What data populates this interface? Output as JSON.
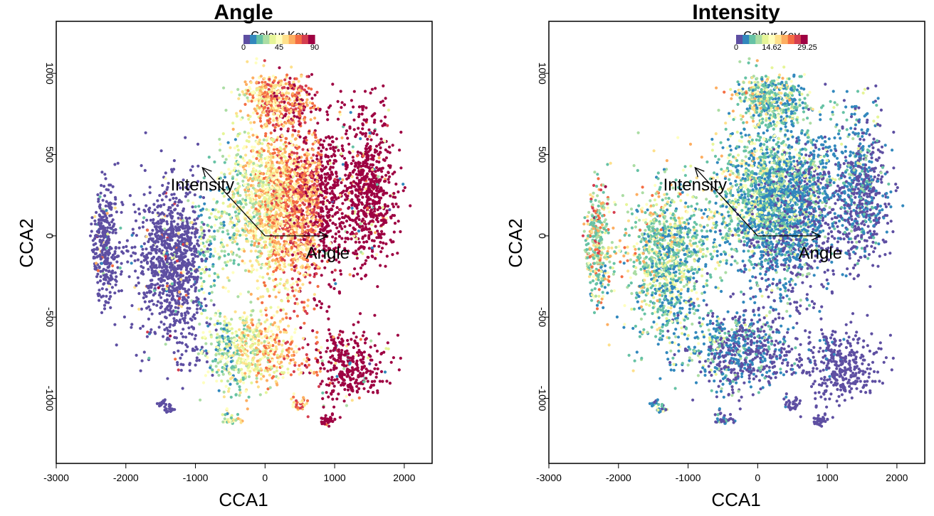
{
  "chart_data": [
    {
      "type": "scatter",
      "title": "Angle",
      "xlabel": "CCA1",
      "ylabel": "CCA2",
      "xlim": [
        -3000,
        2400
      ],
      "ylim": [
        -1400,
        1320
      ],
      "x_ticks": [
        "-3000",
        "-2000",
        "-1000",
        "0",
        "1000",
        "2000"
      ],
      "y_ticks": [
        "-1000",
        "-500",
        "0",
        "500",
        "1000"
      ],
      "colour_key": {
        "title": "Colour Key",
        "tick_labels": [
          "0",
          "45",
          "90"
        ],
        "colors": [
          "#5E4FA2",
          "#3288BD",
          "#66C2A5",
          "#ABDDA4",
          "#E6F598",
          "#FFFFBF",
          "#FEE08B",
          "#FDAE61",
          "#F46D43",
          "#D53E4F",
          "#9E0142"
        ]
      },
      "vectors": [
        {
          "label": "Intensity",
          "x": -900,
          "y": 420
        },
        {
          "label": "Angle",
          "x": 900,
          "y": 0
        }
      ],
      "color_variable": "angle",
      "grid": false
    },
    {
      "type": "scatter",
      "title": "Intensity",
      "xlabel": "CCA1",
      "ylabel": "CCA2",
      "xlim": [
        -3000,
        2400
      ],
      "ylim": [
        -1400,
        1320
      ],
      "x_ticks": [
        "-3000",
        "-2000",
        "-1000",
        "0",
        "1000",
        "2000"
      ],
      "y_ticks": [
        "-1000",
        "-500",
        "0",
        "500",
        "1000"
      ],
      "colour_key": {
        "title": "Colour Key",
        "tick_labels": [
          "0",
          "14.62",
          "29.25"
        ],
        "colors": [
          "#5E4FA2",
          "#3288BD",
          "#66C2A5",
          "#ABDDA4",
          "#E6F598",
          "#FFFFBF",
          "#FEE08B",
          "#FDAE61",
          "#F46D43",
          "#D53E4F",
          "#9E0142"
        ]
      },
      "vectors": [
        {
          "label": "Intensity",
          "x": -900,
          "y": 420
        },
        {
          "label": "Angle",
          "x": 900,
          "y": 0
        }
      ],
      "color_variable": "intensity",
      "grid": false
    }
  ]
}
